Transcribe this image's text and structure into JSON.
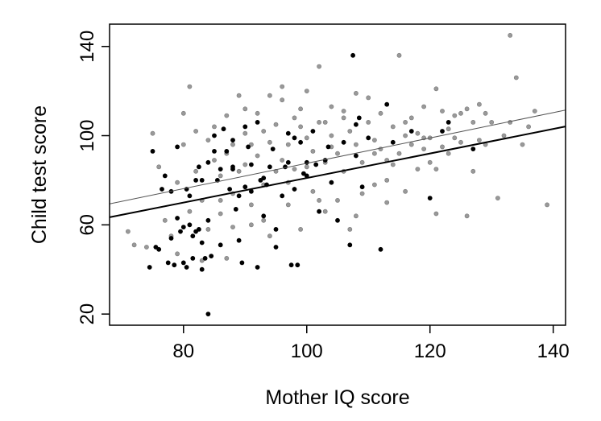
{
  "chart_data": {
    "type": "scatter",
    "title": "",
    "xlabel": "Mother IQ score",
    "ylabel": "Child test score",
    "xlim": [
      68,
      142
    ],
    "ylim": [
      15,
      150
    ],
    "x_ticks": [
      80,
      100,
      120,
      140
    ],
    "y_ticks": [
      20,
      60,
      100,
      140
    ],
    "x_tick_labels": [
      "80",
      "100",
      "120",
      "140"
    ],
    "y_tick_labels": [
      "20",
      "60",
      "100",
      "140"
    ],
    "grid": false,
    "legend": "none",
    "colors": {
      "group_a": "#000000",
      "group_b": "#999999",
      "line_a": "#000000",
      "line_b": "#555555"
    },
    "series": [
      {
        "points": [
          [
            74.5,
            41
          ],
          [
            75,
            93
          ],
          [
            75.5,
            50
          ],
          [
            76,
            49
          ],
          [
            76.5,
            76
          ],
          [
            77,
            82
          ],
          [
            77.5,
            43
          ],
          [
            78,
            54
          ],
          [
            78,
            75
          ],
          [
            78.5,
            42
          ],
          [
            79,
            95
          ],
          [
            79,
            63
          ],
          [
            79.5,
            57
          ],
          [
            80,
            43
          ],
          [
            80,
            59
          ],
          [
            80.5,
            76
          ],
          [
            81,
            73
          ],
          [
            81,
            60
          ],
          [
            81.5,
            55
          ],
          [
            82,
            57
          ],
          [
            82,
            80
          ],
          [
            82.5,
            86
          ],
          [
            82.5,
            58
          ],
          [
            83,
            40
          ],
          [
            83,
            52
          ],
          [
            83,
            80
          ],
          [
            83.5,
            45
          ],
          [
            84,
            62
          ],
          [
            84,
            88
          ],
          [
            84.5,
            46
          ],
          [
            85,
            93
          ],
          [
            85,
            100
          ],
          [
            85.5,
            80
          ],
          [
            86,
            85
          ],
          [
            86,
            51
          ],
          [
            86.5,
            103
          ],
          [
            87,
            93
          ],
          [
            87.5,
            76
          ],
          [
            88,
            86
          ],
          [
            88,
            98
          ],
          [
            88.5,
            67
          ],
          [
            89,
            73
          ],
          [
            89,
            53
          ],
          [
            89.5,
            43
          ],
          [
            90,
            77
          ],
          [
            90.5,
            95
          ],
          [
            91,
            87
          ],
          [
            91,
            75
          ],
          [
            92,
            106
          ],
          [
            92,
            41
          ],
          [
            92.5,
            80
          ],
          [
            93,
            81
          ],
          [
            93,
            64
          ],
          [
            93.5,
            78
          ],
          [
            94,
            86
          ],
          [
            94.5,
            94
          ],
          [
            95,
            50
          ],
          [
            96,
            73
          ],
          [
            96.5,
            86
          ],
          [
            97,
            101
          ],
          [
            97,
            88
          ],
          [
            97.5,
            42
          ],
          [
            98,
            99
          ],
          [
            98,
            76
          ],
          [
            98.5,
            42
          ],
          [
            99,
            97
          ],
          [
            99.5,
            83
          ],
          [
            100,
            82
          ],
          [
            100,
            88
          ],
          [
            101,
            102
          ],
          [
            101.5,
            87
          ],
          [
            102,
            66
          ],
          [
            103,
            89
          ],
          [
            103.5,
            95
          ],
          [
            104,
            79
          ],
          [
            105,
            62
          ],
          [
            106,
            97
          ],
          [
            107,
            51
          ],
          [
            107.5,
            136
          ],
          [
            108,
            105
          ],
          [
            108,
            91
          ],
          [
            108.5,
            108
          ],
          [
            109,
            77
          ],
          [
            110,
            99
          ],
          [
            112,
            49
          ],
          [
            113,
            114
          ],
          [
            114,
            97
          ],
          [
            117,
            102
          ],
          [
            120,
            72
          ],
          [
            122,
            102
          ],
          [
            123,
            106
          ],
          [
            127,
            94
          ],
          [
            80.5,
            41
          ],
          [
            81.5,
            45
          ],
          [
            84,
            20
          ],
          [
            88,
            85
          ],
          [
            90,
            104
          ],
          [
            95,
            58
          ]
        ]
      },
      {
        "points": [
          [
            71,
            57
          ],
          [
            72,
            51
          ],
          [
            74,
            50
          ],
          [
            75,
            101
          ],
          [
            76,
            86
          ],
          [
            77,
            62
          ],
          [
            78,
            55
          ],
          [
            79,
            79
          ],
          [
            79,
            47
          ],
          [
            80,
            110
          ],
          [
            80,
            96
          ],
          [
            81,
            122
          ],
          [
            81,
            66
          ],
          [
            82,
            102
          ],
          [
            82,
            84
          ],
          [
            83,
            44
          ],
          [
            83,
            71
          ],
          [
            84,
            98
          ],
          [
            84,
            58
          ],
          [
            85,
            89
          ],
          [
            85,
            104
          ],
          [
            86,
            82
          ],
          [
            86,
            65
          ],
          [
            87,
            109
          ],
          [
            87,
            92
          ],
          [
            88,
            96
          ],
          [
            88,
            59
          ],
          [
            89,
            118
          ],
          [
            89,
            84
          ],
          [
            90,
            112
          ],
          [
            90,
            101
          ],
          [
            90,
            87
          ],
          [
            91,
            69
          ],
          [
            91,
            96
          ],
          [
            92,
            110
          ],
          [
            92,
            91
          ],
          [
            93,
            78
          ],
          [
            93,
            62
          ],
          [
            94,
            97
          ],
          [
            94,
            118
          ],
          [
            95,
            105
          ],
          [
            95,
            84
          ],
          [
            96,
            122
          ],
          [
            96,
            89
          ],
          [
            97,
            69
          ],
          [
            97,
            96
          ],
          [
            98,
            108
          ],
          [
            98,
            85
          ],
          [
            99,
            58
          ],
          [
            99,
            112
          ],
          [
            100,
            120
          ],
          [
            100,
            99
          ],
          [
            101,
            93
          ],
          [
            101,
            75
          ],
          [
            102,
            131
          ],
          [
            102,
            106
          ],
          [
            103,
            88
          ],
          [
            103,
            66
          ],
          [
            104,
            113
          ],
          [
            104,
            100
          ],
          [
            105,
            92
          ],
          [
            105,
            71
          ],
          [
            106,
            111
          ],
          [
            106,
            84
          ],
          [
            107,
            102
          ],
          [
            107,
            58
          ],
          [
            108,
            119
          ],
          [
            108,
            96
          ],
          [
            109,
            88
          ],
          [
            109,
            74
          ],
          [
            110,
            106
          ],
          [
            110,
            117
          ],
          [
            111,
            98
          ],
          [
            111,
            78
          ],
          [
            112,
            94
          ],
          [
            112,
            110
          ],
          [
            113,
            89
          ],
          [
            113,
            70
          ],
          [
            114,
            104
          ],
          [
            114,
            87
          ],
          [
            115,
            136
          ],
          [
            115,
            92
          ],
          [
            116,
            100
          ],
          [
            116,
            75
          ],
          [
            117,
            108
          ],
          [
            117,
            96
          ],
          [
            118,
            85
          ],
          [
            118,
            101
          ],
          [
            119,
            113
          ],
          [
            119,
            94
          ],
          [
            120,
            99
          ],
          [
            120,
            88
          ],
          [
            121,
            121
          ],
          [
            121,
            65
          ],
          [
            122,
            111
          ],
          [
            122,
            95
          ],
          [
            123,
            103
          ],
          [
            124,
            109
          ],
          [
            124,
            99
          ],
          [
            125,
            97
          ],
          [
            126,
            112
          ],
          [
            126,
            64
          ],
          [
            127,
            106
          ],
          [
            127,
            84
          ],
          [
            128,
            114
          ],
          [
            128,
            98
          ],
          [
            129,
            110
          ],
          [
            130,
            106
          ],
          [
            131,
            72
          ],
          [
            132,
            100
          ],
          [
            133,
            145
          ],
          [
            133,
            106
          ],
          [
            134,
            126
          ],
          [
            135,
            96
          ],
          [
            136,
            104
          ],
          [
            137,
            111
          ],
          [
            139,
            69
          ],
          [
            86,
            71
          ],
          [
            88,
            74
          ],
          [
            91,
            60
          ],
          [
            93,
            102
          ],
          [
            96,
            116
          ],
          [
            99,
            104
          ],
          [
            102,
            71
          ],
          [
            104,
            95
          ],
          [
            106,
            108
          ],
          [
            108,
            64
          ],
          [
            111,
            92
          ],
          [
            113,
            80
          ],
          [
            116,
            106
          ],
          [
            119,
            99
          ],
          [
            121,
            85
          ],
          [
            123,
            92
          ],
          [
            125,
            110
          ],
          [
            129,
            96
          ],
          [
            87,
            45
          ],
          [
            94,
            55
          ],
          [
            97,
            79
          ],
          [
            100,
            86
          ],
          [
            103,
            106
          ]
        ]
      }
    ],
    "regression_lines": [
      {
        "intercept": 26,
        "slope": 0.55,
        "x_range": [
          68,
          142
        ]
      },
      {
        "intercept": 30.8,
        "slope": 0.568,
        "x_range": [
          68,
          142
        ]
      }
    ]
  }
}
